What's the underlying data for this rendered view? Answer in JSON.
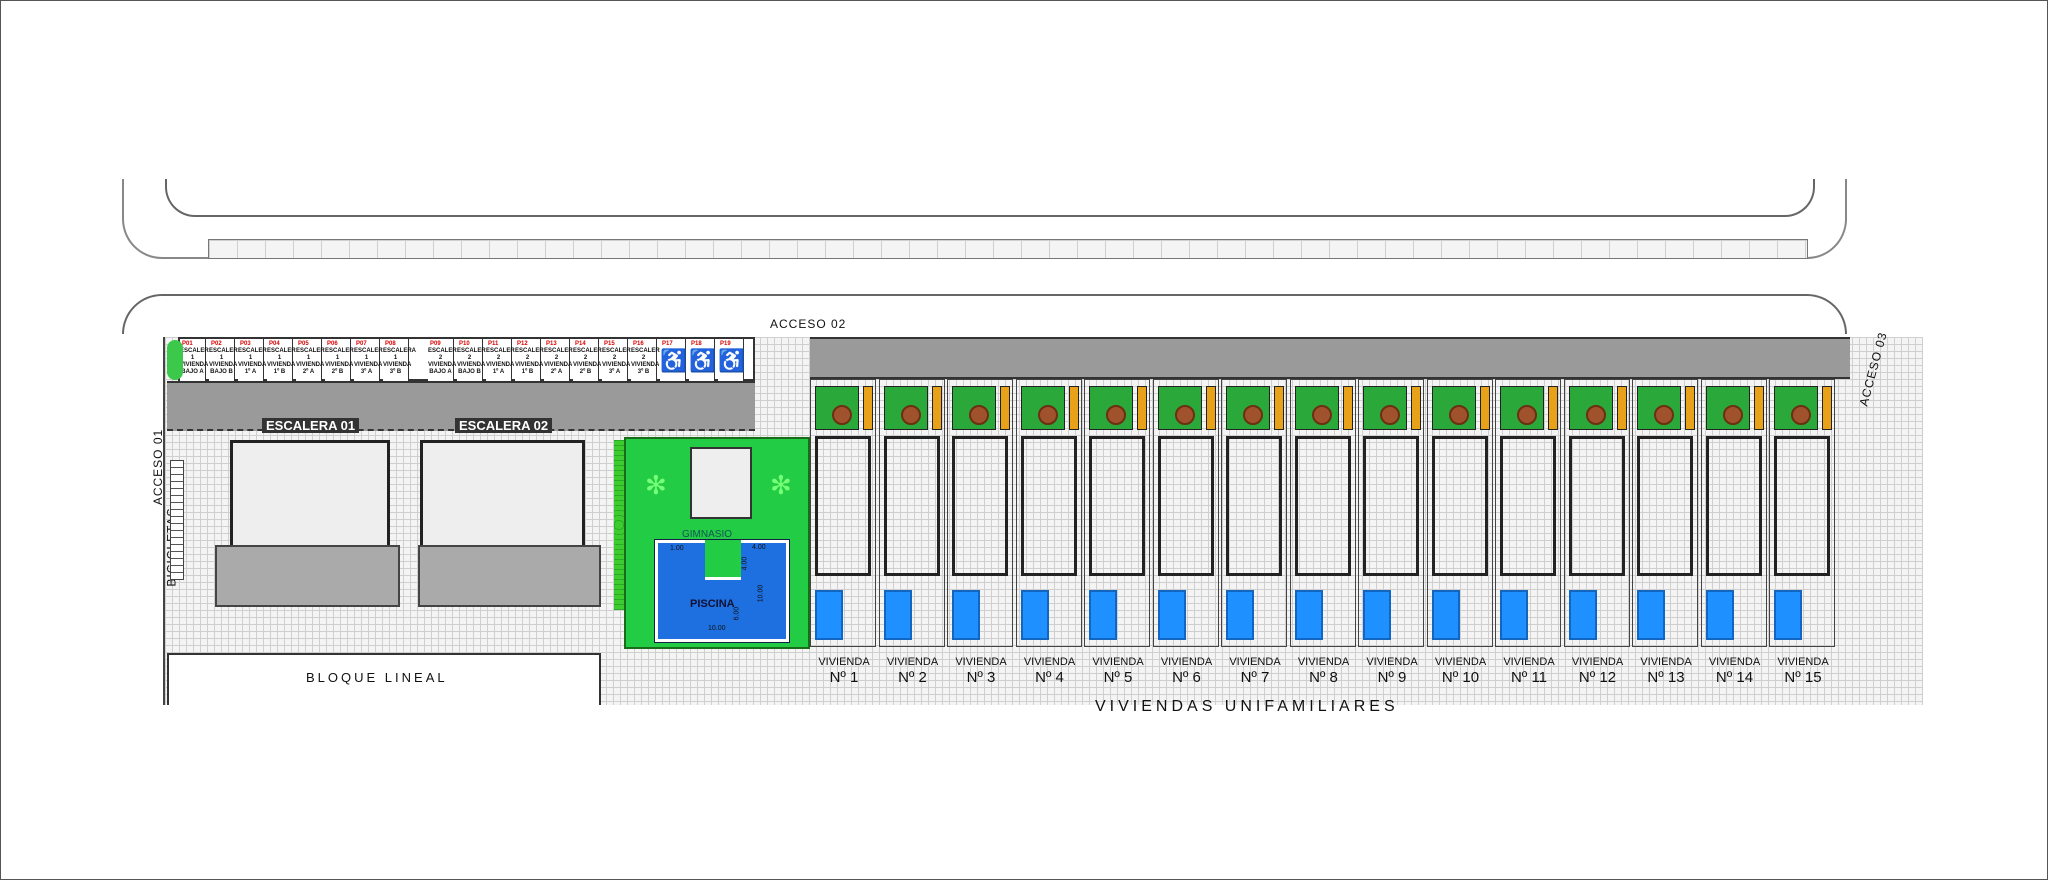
{
  "labels": {
    "acceso_01": "ACCESO 01",
    "acceso_02": "ACCESO 02",
    "acceso_03": "ACCESO 03",
    "escalera_01": "ESCALERA 01",
    "escalera_02": "ESCALERA 02",
    "bicicletas": "BICICLETAS",
    "gimnasio": "GIMNASIO",
    "piscina": "PISCINA",
    "bloque_lineal": "BLOQUE LINEAL",
    "viviendas_unifamiliares": "VIVIENDAS UNIFAMILIARES"
  },
  "pool_dimensions": {
    "a": "1.00",
    "b": "4.00",
    "c": "4.00",
    "d": "10.00",
    "e": "6.00",
    "f": "10.00"
  },
  "parking": [
    {
      "id": "P01",
      "text": "ESCALERA 1 VIVIENDA BAJO A"
    },
    {
      "id": "P02",
      "text": "ESCALERA 1 VIVIENDA BAJO B"
    },
    {
      "id": "P03",
      "text": "ESCALERA 1 VIVIENDA 1º A"
    },
    {
      "id": "P04",
      "text": "ESCALERA 1 VIVIENDA 1º B"
    },
    {
      "id": "P05",
      "text": "ESCALERA 1 VIVIENDA 2º A"
    },
    {
      "id": "P06",
      "text": "ESCALERA 1 VIVIENDA 2º B"
    },
    {
      "id": "P07",
      "text": "ESCALERA 1 VIVIENDA 3º A"
    },
    {
      "id": "P08",
      "text": "ESCALERA 1 VIVIENDA 3º B"
    },
    {
      "id": "P09",
      "text": "ESCALERA 2 VIVIENDA BAJO A"
    },
    {
      "id": "P10",
      "text": "ESCALERA 2 VIVIENDA BAJO B"
    },
    {
      "id": "P11",
      "text": "ESCALERA 2 VIVIENDA 1º A"
    },
    {
      "id": "P12",
      "text": "ESCALERA 2 VIVIENDA 1º B"
    },
    {
      "id": "P13",
      "text": "ESCALERA 2 VIVIENDA 2º A"
    },
    {
      "id": "P14",
      "text": "ESCALERA 2 VIVIENDA 2º B"
    },
    {
      "id": "P15",
      "text": "ESCALERA 2 VIVIENDA 3º A"
    },
    {
      "id": "P16",
      "text": "ESCALERA 2 VIVIENDA 3º B"
    },
    {
      "id": "P17",
      "text": "accessible-icon"
    },
    {
      "id": "P18",
      "text": "accessible-icon"
    },
    {
      "id": "P19",
      "text": "accessible-icon"
    }
  ],
  "houses": [
    {
      "label": "VIVIENDA",
      "num": "Nº 1"
    },
    {
      "label": "VIVIENDA",
      "num": "Nº 2"
    },
    {
      "label": "VIVIENDA",
      "num": "Nº 3"
    },
    {
      "label": "VIVIENDA",
      "num": "Nº 4"
    },
    {
      "label": "VIVIENDA",
      "num": "Nº 5"
    },
    {
      "label": "VIVIENDA",
      "num": "Nº 6"
    },
    {
      "label": "VIVIENDA",
      "num": "Nº 7"
    },
    {
      "label": "VIVIENDA",
      "num": "Nº 8"
    },
    {
      "label": "VIVIENDA",
      "num": "Nº 9"
    },
    {
      "label": "VIVIENDA",
      "num": "Nº 10"
    },
    {
      "label": "VIVIENDA",
      "num": "Nº 11"
    },
    {
      "label": "VIVIENDA",
      "num": "Nº 12"
    },
    {
      "label": "VIVIENDA",
      "num": "Nº 13"
    },
    {
      "label": "VIVIENDA",
      "num": "Nº 14"
    },
    {
      "label": "VIVIENDA",
      "num": "Nº 15"
    }
  ],
  "colors": {
    "garden": "#22cc44",
    "pool": "#1e6fe0",
    "road": "#9a9a9a",
    "patio": "#2aa83a",
    "accent": "#e8a21a"
  }
}
